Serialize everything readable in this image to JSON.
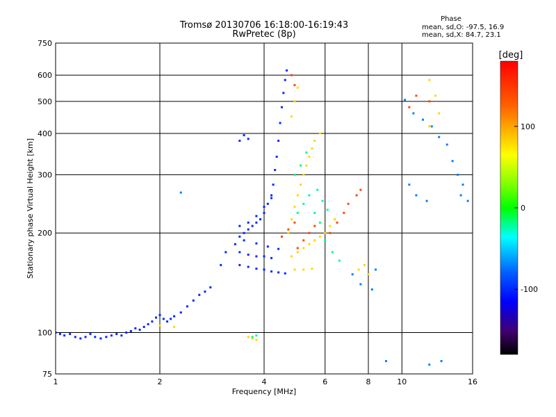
{
  "chart_data": {
    "type": "scatter",
    "title": "Tromsø 20130706 16:18:00-16:19:43",
    "subtitle": "RwPretec (8p)",
    "xlabel": "Frequency [MHz]",
    "ylabel": "Stationary phase Virtual Height [km]",
    "x_scale": "log",
    "y_scale": "log",
    "xlim": [
      1,
      16
    ],
    "ylim": [
      75,
      750
    ],
    "x_ticks": [
      1,
      2,
      4,
      6,
      8,
      10,
      16
    ],
    "x_tick_labels": [
      "1",
      "2",
      "4",
      "6",
      "8",
      "10",
      "16"
    ],
    "y_ticks": [
      75,
      100,
      200,
      300,
      400,
      500,
      600,
      750
    ],
    "y_tick_labels": [
      "75",
      "100",
      "200",
      "300",
      "400",
      "500",
      "600",
      "750"
    ],
    "grid": true,
    "phase_info": {
      "title": "Phase",
      "line_o": "mean, sd,O: -97.5, 16.9",
      "line_x": "mean, sd,X:  84.7, 23.1"
    },
    "colorbar": {
      "label": "[deg]",
      "range": [
        -180,
        180
      ],
      "ticks": [
        100,
        0,
        -100
      ],
      "tick_labels": [
        "100",
        "0",
        "-100"
      ]
    },
    "series": [
      {
        "color_deg": -100,
        "points": [
          [
            1.0,
            100
          ],
          [
            1.03,
            99
          ],
          [
            1.06,
            98
          ],
          [
            1.1,
            99
          ],
          [
            1.14,
            97
          ],
          [
            1.18,
            96
          ],
          [
            1.22,
            97
          ],
          [
            1.26,
            99
          ],
          [
            1.3,
            97
          ],
          [
            1.35,
            96
          ],
          [
            1.4,
            97
          ],
          [
            1.45,
            98
          ],
          [
            1.5,
            99
          ],
          [
            1.55,
            98
          ],
          [
            1.6,
            100
          ],
          [
            1.65,
            101
          ],
          [
            1.7,
            103
          ],
          [
            1.75,
            102
          ],
          [
            1.8,
            104
          ],
          [
            1.85,
            106
          ],
          [
            1.9,
            108
          ],
          [
            1.95,
            111
          ],
          [
            2.0,
            113
          ],
          [
            2.05,
            110
          ],
          [
            2.1,
            108
          ],
          [
            2.15,
            110
          ],
          [
            2.2,
            112
          ],
          [
            2.3,
            115
          ],
          [
            2.4,
            120
          ],
          [
            2.5,
            125
          ],
          [
            2.6,
            130
          ],
          [
            2.7,
            133
          ],
          [
            2.8,
            137
          ],
          [
            3.0,
            160
          ],
          [
            3.1,
            175
          ],
          [
            3.3,
            185
          ],
          [
            3.4,
            195
          ],
          [
            3.5,
            200
          ],
          [
            3.6,
            205
          ],
          [
            3.7,
            210
          ],
          [
            3.8,
            215
          ],
          [
            3.9,
            220
          ],
          [
            4.0,
            230
          ],
          [
            4.1,
            245
          ],
          [
            4.2,
            260
          ],
          [
            4.25,
            280
          ],
          [
            4.3,
            310
          ],
          [
            4.35,
            340
          ],
          [
            4.4,
            380
          ],
          [
            4.45,
            430
          ],
          [
            4.5,
            480
          ],
          [
            4.55,
            530
          ],
          [
            4.6,
            580
          ],
          [
            4.65,
            620
          ],
          [
            3.4,
            160
          ],
          [
            3.6,
            158
          ],
          [
            3.8,
            156
          ],
          [
            4.0,
            155
          ],
          [
            4.2,
            153
          ],
          [
            4.4,
            152
          ],
          [
            4.6,
            151
          ],
          [
            3.4,
            175
          ],
          [
            3.6,
            172
          ],
          [
            3.8,
            170
          ],
          [
            4.0,
            170
          ],
          [
            4.2,
            168
          ],
          [
            3.5,
            190
          ],
          [
            3.8,
            186
          ],
          [
            4.1,
            182
          ],
          [
            4.4,
            179
          ],
          [
            3.4,
            210
          ],
          [
            3.6,
            215
          ],
          [
            3.8,
            225
          ],
          [
            4.0,
            240
          ],
          [
            4.2,
            255
          ],
          [
            3.5,
            395
          ],
          [
            3.6,
            385
          ],
          [
            3.4,
            380
          ]
        ]
      },
      {
        "color_deg": 80,
        "points": [
          [
            4.7,
            200
          ],
          [
            4.8,
            220
          ],
          [
            4.9,
            240
          ],
          [
            5.0,
            260
          ],
          [
            5.1,
            280
          ],
          [
            5.2,
            300
          ],
          [
            5.3,
            320
          ],
          [
            5.4,
            340
          ],
          [
            5.5,
            360
          ],
          [
            5.6,
            380
          ],
          [
            5.8,
            400
          ],
          [
            4.8,
            170
          ],
          [
            5.0,
            175
          ],
          [
            5.2,
            180
          ],
          [
            5.4,
            185
          ],
          [
            5.6,
            190
          ],
          [
            5.8,
            195
          ],
          [
            6.0,
            200
          ],
          [
            6.2,
            210
          ],
          [
            6.4,
            220
          ],
          [
            4.9,
            155
          ],
          [
            5.2,
            155
          ],
          [
            5.5,
            156
          ],
          [
            4.8,
            450
          ],
          [
            4.9,
            500
          ],
          [
            5.0,
            550
          ],
          [
            3.6,
            97
          ],
          [
            3.7,
            96
          ],
          [
            3.8,
            95
          ],
          [
            2.0,
            105
          ],
          [
            2.2,
            104
          ],
          [
            7.5,
            155
          ],
          [
            7.8,
            160
          ],
          [
            8.0,
            150
          ],
          [
            12.0,
            580
          ],
          [
            12.5,
            520
          ],
          [
            12.8,
            460
          ],
          [
            12.0,
            420
          ]
        ]
      },
      {
        "color_deg": -20,
        "points": [
          [
            5.0,
            230
          ],
          [
            5.2,
            245
          ],
          [
            5.4,
            260
          ],
          [
            5.6,
            230
          ],
          [
            5.8,
            215
          ],
          [
            6.0,
            190
          ],
          [
            6.3,
            175
          ],
          [
            6.6,
            165
          ],
          [
            4.9,
            300
          ],
          [
            5.1,
            320
          ],
          [
            5.3,
            350
          ],
          [
            5.7,
            270
          ],
          [
            5.9,
            250
          ],
          [
            6.1,
            235
          ],
          [
            3.7,
            97
          ],
          [
            3.8,
            98
          ]
        ]
      },
      {
        "color_deg": 140,
        "points": [
          [
            5.0,
            180
          ],
          [
            5.2,
            190
          ],
          [
            5.4,
            200
          ],
          [
            5.6,
            210
          ],
          [
            6.2,
            200
          ],
          [
            6.5,
            215
          ],
          [
            6.8,
            230
          ],
          [
            7.0,
            245
          ],
          [
            7.4,
            260
          ],
          [
            7.6,
            270
          ],
          [
            4.5,
            195
          ],
          [
            4.7,
            205
          ],
          [
            4.9,
            215
          ],
          [
            4.8,
            600
          ],
          [
            4.9,
            560
          ],
          [
            11.0,
            520
          ],
          [
            12.0,
            500
          ],
          [
            10.5,
            480
          ]
        ]
      },
      {
        "color_deg": -70,
        "points": [
          [
            10.2,
            505
          ],
          [
            10.8,
            460
          ],
          [
            11.5,
            440
          ],
          [
            12.2,
            420
          ],
          [
            12.8,
            390
          ],
          [
            13.5,
            370
          ],
          [
            14.0,
            330
          ],
          [
            14.5,
            300
          ],
          [
            15.0,
            280
          ],
          [
            14.8,
            260
          ],
          [
            15.5,
            250
          ],
          [
            10.5,
            280
          ],
          [
            11.0,
            260
          ],
          [
            11.8,
            250
          ],
          [
            9.0,
            82
          ],
          [
            12.0,
            80
          ],
          [
            13.0,
            82
          ],
          [
            7.2,
            150
          ],
          [
            7.6,
            140
          ],
          [
            8.2,
            135
          ],
          [
            8.4,
            155
          ],
          [
            2.3,
            265
          ]
        ]
      }
    ]
  }
}
